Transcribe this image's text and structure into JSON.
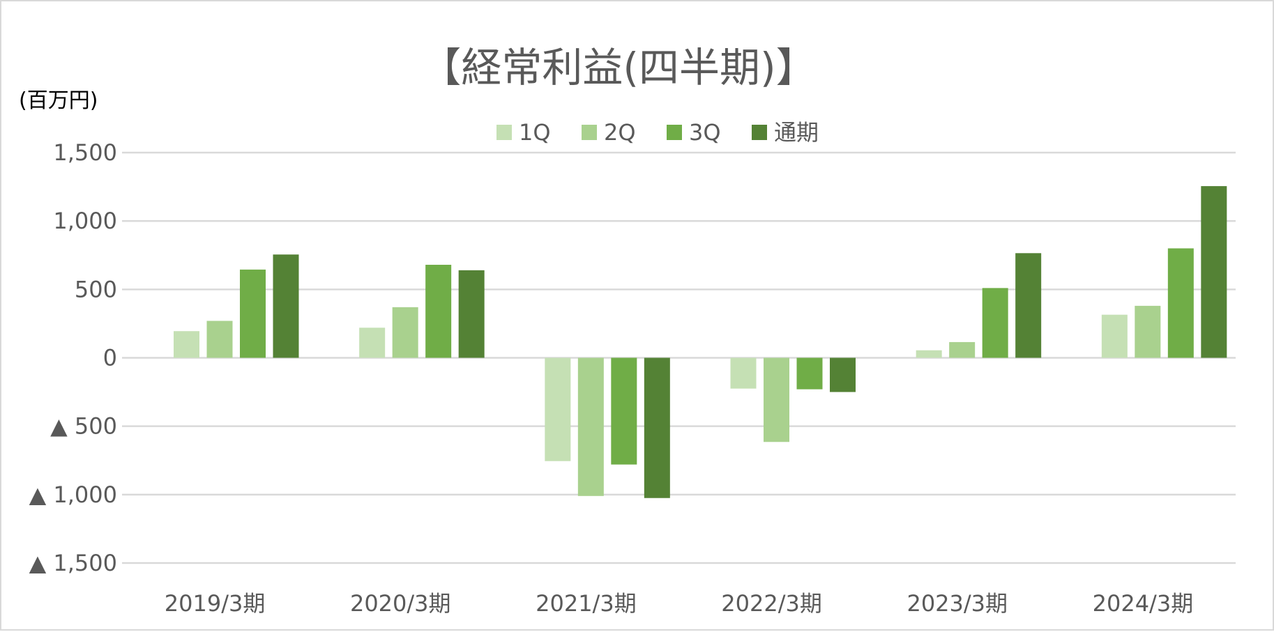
{
  "chart_data": {
    "type": "bar",
    "title": "【経常利益(四半期)】",
    "unit_label": "(百万円)",
    "categories": [
      "2019/3期",
      "2020/3期",
      "2021/3期",
      "2022/3期",
      "2023/3期",
      "2024/3期"
    ],
    "series": [
      {
        "name": "1Q",
        "color": "#c5e0b4",
        "values": [
          195,
          220,
          -755,
          -225,
          55,
          315
        ]
      },
      {
        "name": "2Q",
        "color": "#a9d18e",
        "values": [
          270,
          370,
          -1010,
          -615,
          115,
          380
        ]
      },
      {
        "name": "3Q",
        "color": "#70ad47",
        "values": [
          645,
          680,
          -780,
          -230,
          510,
          800
        ]
      },
      {
        "name": "通期",
        "color": "#548235",
        "values": [
          755,
          640,
          -1025,
          -250,
          765,
          1255
        ]
      }
    ],
    "ylim": [
      -1500,
      1500
    ],
    "yticks": [
      1500,
      1000,
      500,
      0,
      -500,
      -1000,
      -1500
    ],
    "ytick_labels": [
      "1,500",
      "1,000",
      "500",
      "0",
      "▲ 500",
      "▲ 1,000",
      "▲ 1,500"
    ],
    "xlabel": "",
    "ylabel": "",
    "grid": true,
    "legend_position": "top-center"
  }
}
